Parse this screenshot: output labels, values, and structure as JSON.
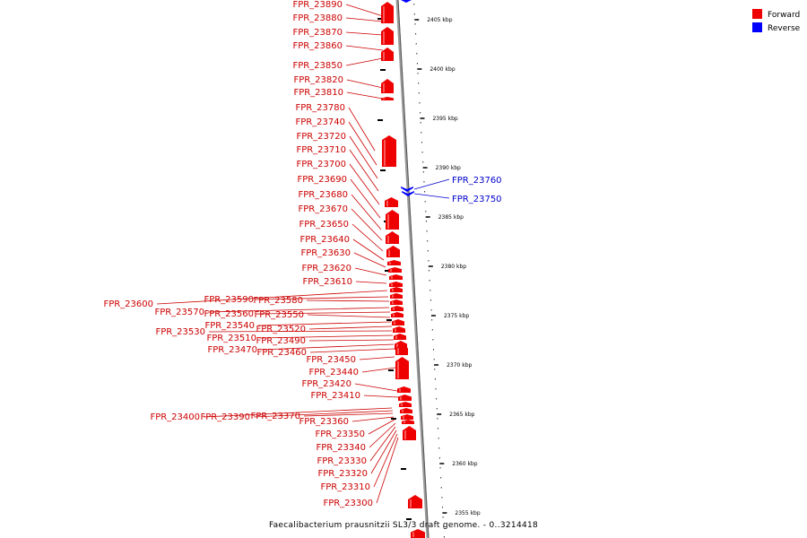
{
  "caption": "Faecalibacterium prausnitzii SL3/3 draft genome. - 0..3214418",
  "legend": [
    {
      "label": "Forward",
      "color": "#ee0000"
    },
    {
      "label": "Reverse",
      "color": "#0000ff"
    }
  ],
  "scale_ticks": [
    "2405 kbp",
    "2400 kbp",
    "2395 kbp",
    "2390 kbp",
    "2385 kbp",
    "2380 kbp",
    "2375 kbp",
    "2370 kbp",
    "2365 kbp",
    "2360 kbp",
    "2355 kbp"
  ],
  "forward_genes": [
    "FPR_23890",
    "FPR_23880",
    "FPR_23870",
    "FPR_23860",
    "FPR_23850",
    "FPR_23820",
    "FPR_23810",
    "FPR_23780",
    "FPR_23740",
    "FPR_23720",
    "FPR_23710",
    "FPR_23700",
    "FPR_23690",
    "FPR_23680",
    "FPR_23670",
    "FPR_23650",
    "FPR_23640",
    "FPR_23630",
    "FPR_23620",
    "FPR_23610",
    "FPR_23600",
    "FPR_23590",
    "FPR_23580",
    "FPR_23570",
    "FPR_23560",
    "FPR_23550",
    "FPR_23540",
    "FPR_23520",
    "FPR_23530",
    "FPR_23510",
    "FPR_23490",
    "FPR_23470",
    "FPR_23460",
    "FPR_23450",
    "FPR_23440",
    "FPR_23420",
    "FPR_23410",
    "FPR_23400",
    "FPR_23390",
    "FPR_23370",
    "FPR_23360",
    "FPR_23350",
    "FPR_23340",
    "FPR_23330",
    "FPR_23320",
    "FPR_23310",
    "FPR_23300"
  ],
  "reverse_genes": [
    "FPR_23760",
    "FPR_23750"
  ]
}
